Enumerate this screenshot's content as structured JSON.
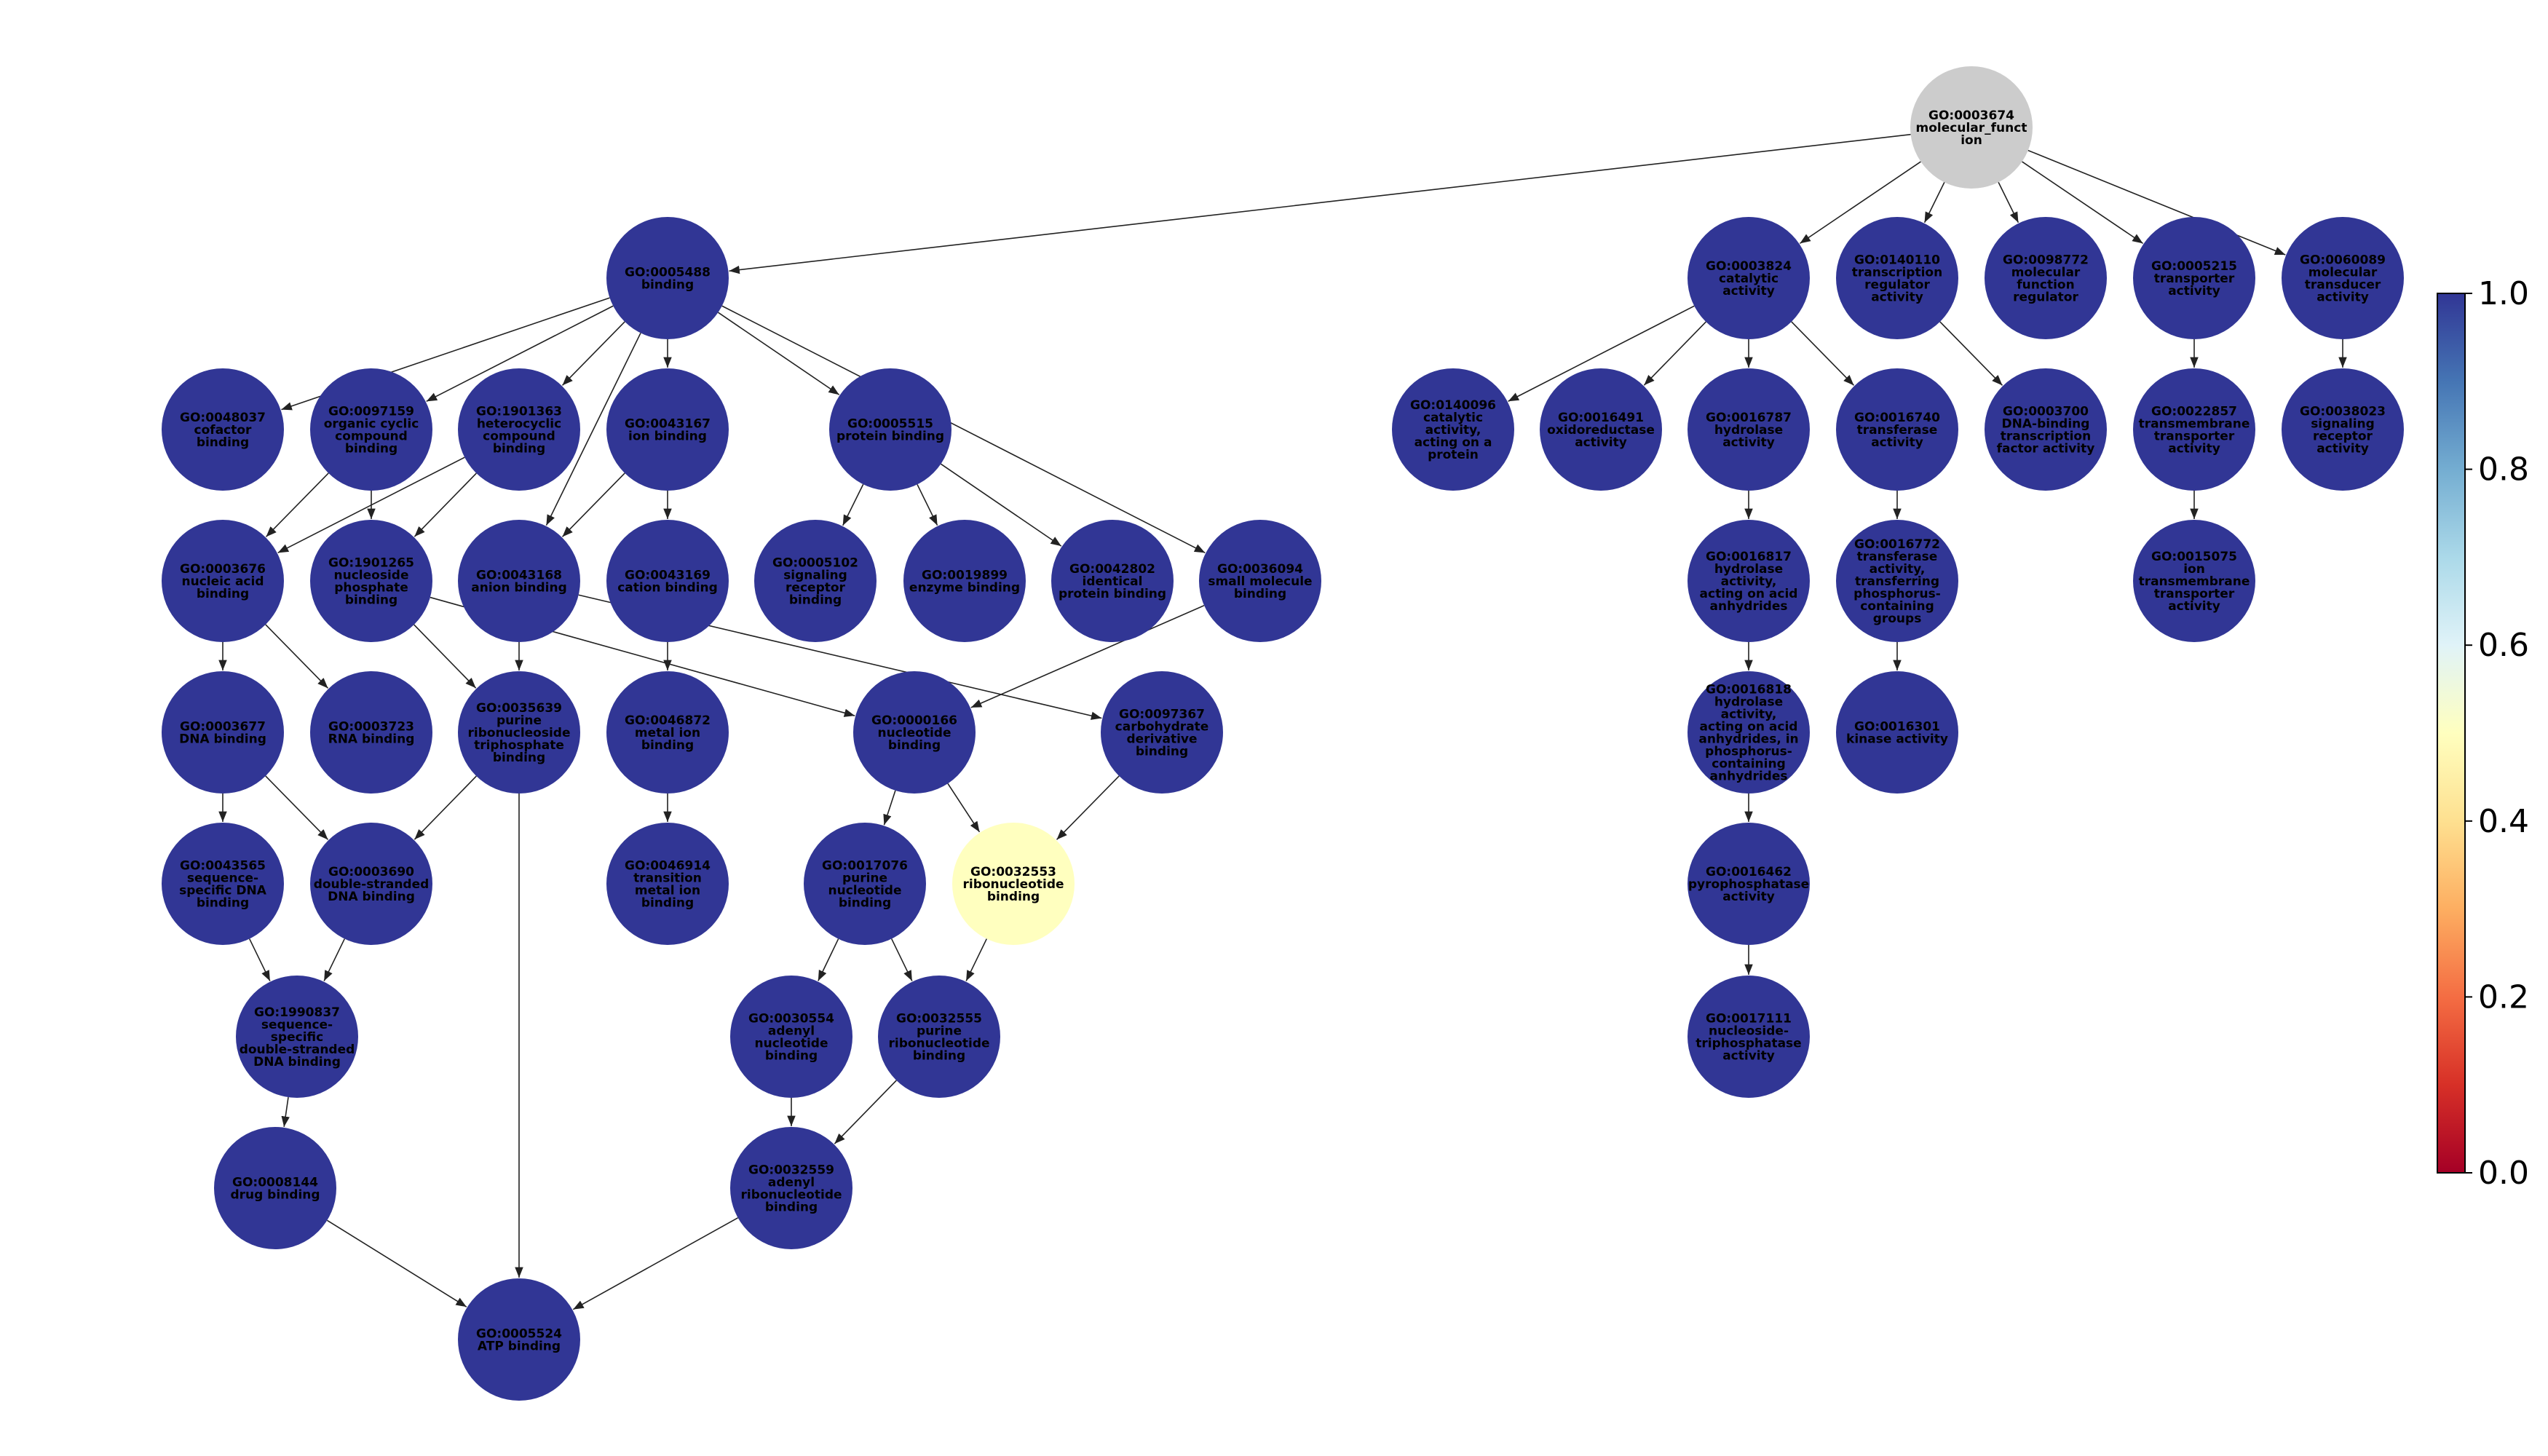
{
  "colors": {
    "node_default": "#313695",
    "node_root": "#cccccc",
    "node_highlight": "#ffffbf",
    "edge": "#222222"
  },
  "colorbar": {
    "ticks": [
      "1.0",
      "0.8",
      "0.6",
      "0.4",
      "0.2",
      "0.0"
    ],
    "gradient": [
      "#313695",
      "#4575b4",
      "#74add1",
      "#abd9e9",
      "#e0f3f8",
      "#ffffbf",
      "#fee090",
      "#fdae61",
      "#f46d43",
      "#d73027",
      "#a50026"
    ]
  },
  "nodes": [
    {
      "id": "GO:0003674",
      "lines": [
        "GO:0003674",
        "molecular_funct",
        "ion"
      ],
      "value": null
    },
    {
      "id": "GO:0005488",
      "lines": [
        "GO:0005488",
        "binding"
      ],
      "value": 1.0
    },
    {
      "id": "GO:0003824",
      "lines": [
        "GO:0003824",
        "catalytic",
        "activity"
      ],
      "value": 1.0
    },
    {
      "id": "GO:0140110",
      "lines": [
        "GO:0140110",
        "transcription",
        "regulator",
        "activity"
      ],
      "value": 1.0
    },
    {
      "id": "GO:0098772",
      "lines": [
        "GO:0098772",
        "molecular",
        "function",
        "regulator"
      ],
      "value": 1.0
    },
    {
      "id": "GO:0005215",
      "lines": [
        "GO:0005215",
        "transporter",
        "activity"
      ],
      "value": 1.0
    },
    {
      "id": "GO:0060089",
      "lines": [
        "GO:0060089",
        "molecular",
        "transducer",
        "activity"
      ],
      "value": 1.0
    },
    {
      "id": "GO:0048037",
      "lines": [
        "GO:0048037",
        "cofactor",
        "binding"
      ],
      "value": 1.0
    },
    {
      "id": "GO:0097159",
      "lines": [
        "GO:0097159",
        "organic cyclic",
        "compound",
        "binding"
      ],
      "value": 1.0
    },
    {
      "id": "GO:1901363",
      "lines": [
        "GO:1901363",
        "heterocyclic",
        "compound",
        "binding"
      ],
      "value": 1.0
    },
    {
      "id": "GO:0043167",
      "lines": [
        "GO:0043167",
        "ion binding"
      ],
      "value": 1.0
    },
    {
      "id": "GO:0005515",
      "lines": [
        "GO:0005515",
        "protein binding"
      ],
      "value": 1.0
    },
    {
      "id": "GO:0140096",
      "lines": [
        "GO:0140096",
        "catalytic",
        "activity,",
        "acting on a",
        "protein"
      ],
      "value": 1.0
    },
    {
      "id": "GO:0016491",
      "lines": [
        "GO:0016491",
        "oxidoreductase",
        "activity"
      ],
      "value": 1.0
    },
    {
      "id": "GO:0016787",
      "lines": [
        "GO:0016787",
        "hydrolase",
        "activity"
      ],
      "value": 1.0
    },
    {
      "id": "GO:0016740",
      "lines": [
        "GO:0016740",
        "transferase",
        "activity"
      ],
      "value": 1.0
    },
    {
      "id": "GO:0003700",
      "lines": [
        "GO:0003700",
        "DNA-binding",
        "transcription",
        "factor activity"
      ],
      "value": 1.0
    },
    {
      "id": "GO:0022857",
      "lines": [
        "GO:0022857",
        "transmembrane",
        "transporter",
        "activity"
      ],
      "value": 1.0
    },
    {
      "id": "GO:0038023",
      "lines": [
        "GO:0038023",
        "signaling",
        "receptor",
        "activity"
      ],
      "value": 1.0
    },
    {
      "id": "GO:0003676",
      "lines": [
        "GO:0003676",
        "nucleic acid",
        "binding"
      ],
      "value": 1.0
    },
    {
      "id": "GO:1901265",
      "lines": [
        "GO:1901265",
        "nucleoside",
        "phosphate",
        "binding"
      ],
      "value": 1.0
    },
    {
      "id": "GO:0043168",
      "lines": [
        "GO:0043168",
        "anion binding"
      ],
      "value": 1.0
    },
    {
      "id": "GO:0043169",
      "lines": [
        "GO:0043169",
        "cation binding"
      ],
      "value": 1.0
    },
    {
      "id": "GO:0005102",
      "lines": [
        "GO:0005102",
        "signaling",
        "receptor",
        "binding"
      ],
      "value": 1.0
    },
    {
      "id": "GO:0019899",
      "lines": [
        "GO:0019899",
        "enzyme binding"
      ],
      "value": 1.0
    },
    {
      "id": "GO:0042802",
      "lines": [
        "GO:0042802",
        "identical",
        "protein binding"
      ],
      "value": 1.0
    },
    {
      "id": "GO:0036094",
      "lines": [
        "GO:0036094",
        "small molecule",
        "binding"
      ],
      "value": 1.0
    },
    {
      "id": "GO:0016817",
      "lines": [
        "GO:0016817",
        "hydrolase",
        "activity,",
        "acting on acid",
        "anhydrides"
      ],
      "value": 1.0
    },
    {
      "id": "GO:0016772",
      "lines": [
        "GO:0016772",
        "transferase",
        "activity,",
        "transferring",
        "phosphorus-",
        "containing",
        "groups"
      ],
      "value": 1.0
    },
    {
      "id": "GO:0015075",
      "lines": [
        "GO:0015075",
        "ion",
        "transmembrane",
        "transporter",
        "activity"
      ],
      "value": 1.0
    },
    {
      "id": "GO:0003677",
      "lines": [
        "GO:0003677",
        "DNA binding"
      ],
      "value": 1.0
    },
    {
      "id": "GO:0003723",
      "lines": [
        "GO:0003723",
        "RNA binding"
      ],
      "value": 1.0
    },
    {
      "id": "GO:0035639",
      "lines": [
        "GO:0035639",
        "purine",
        "ribonucleoside",
        "triphosphate",
        "binding"
      ],
      "value": 1.0
    },
    {
      "id": "GO:0046872",
      "lines": [
        "GO:0046872",
        "metal ion",
        "binding"
      ],
      "value": 1.0
    },
    {
      "id": "GO:0000166",
      "lines": [
        "GO:0000166",
        "nucleotide",
        "binding"
      ],
      "value": 1.0
    },
    {
      "id": "GO:0097367",
      "lines": [
        "GO:0097367",
        "carbohydrate",
        "derivative",
        "binding"
      ],
      "value": 1.0
    },
    {
      "id": "GO:0016818",
      "lines": [
        "GO:0016818",
        "hydrolase",
        "activity,",
        "acting on acid",
        "anhydrides, in",
        "phosphorus-",
        "containing",
        "anhydrides"
      ],
      "value": 1.0
    },
    {
      "id": "GO:0016301",
      "lines": [
        "GO:0016301",
        "kinase activity"
      ],
      "value": 1.0
    },
    {
      "id": "GO:0043565",
      "lines": [
        "GO:0043565",
        "sequence-",
        "specific DNA",
        "binding"
      ],
      "value": 1.0
    },
    {
      "id": "GO:0003690",
      "lines": [
        "GO:0003690",
        "double-stranded",
        "DNA binding"
      ],
      "value": 1.0
    },
    {
      "id": "GO:0046914",
      "lines": [
        "GO:0046914",
        "transition",
        "metal ion",
        "binding"
      ],
      "value": 1.0
    },
    {
      "id": "GO:0017076",
      "lines": [
        "GO:0017076",
        "purine",
        "nucleotide",
        "binding"
      ],
      "value": 1.0
    },
    {
      "id": "GO:0032553",
      "lines": [
        "GO:0032553",
        "ribonucleotide",
        "binding"
      ],
      "value": 0.5
    },
    {
      "id": "GO:0016462",
      "lines": [
        "GO:0016462",
        "pyrophosphatase",
        "activity"
      ],
      "value": 1.0
    },
    {
      "id": "GO:1990837",
      "lines": [
        "GO:1990837",
        "sequence-",
        "specific",
        "double-stranded",
        "DNA binding"
      ],
      "value": 1.0
    },
    {
      "id": "GO:0030554",
      "lines": [
        "GO:0030554",
        "adenyl",
        "nucleotide",
        "binding"
      ],
      "value": 1.0
    },
    {
      "id": "GO:0032555",
      "lines": [
        "GO:0032555",
        "purine",
        "ribonucleotide",
        "binding"
      ],
      "value": 1.0
    },
    {
      "id": "GO:0017111",
      "lines": [
        "GO:0017111",
        "nucleoside-",
        "triphosphatase",
        "activity"
      ],
      "value": 1.0
    },
    {
      "id": "GO:0008144",
      "lines": [
        "GO:0008144",
        "drug binding"
      ],
      "value": 1.0
    },
    {
      "id": "GO:0032559",
      "lines": [
        "GO:0032559",
        "adenyl",
        "ribonucleotide",
        "binding"
      ],
      "value": 1.0
    },
    {
      "id": "GO:0005524",
      "lines": [
        "GO:0005524",
        "ATP binding"
      ],
      "value": 1.0
    }
  ],
  "edges": [
    [
      "GO:0003674",
      "GO:0005488"
    ],
    [
      "GO:0003674",
      "GO:0003824"
    ],
    [
      "GO:0003674",
      "GO:0140110"
    ],
    [
      "GO:0003674",
      "GO:0098772"
    ],
    [
      "GO:0003674",
      "GO:0005215"
    ],
    [
      "GO:0003674",
      "GO:0060089"
    ],
    [
      "GO:0005488",
      "GO:0048037"
    ],
    [
      "GO:0005488",
      "GO:0097159"
    ],
    [
      "GO:0005488",
      "GO:1901363"
    ],
    [
      "GO:0005488",
      "GO:0043167"
    ],
    [
      "GO:0005488",
      "GO:0005515"
    ],
    [
      "GO:0005488",
      "GO:0043168"
    ],
    [
      "GO:0005488",
      "GO:0036094"
    ],
    [
      "GO:0003824",
      "GO:0140096"
    ],
    [
      "GO:0003824",
      "GO:0016491"
    ],
    [
      "GO:0003824",
      "GO:0016787"
    ],
    [
      "GO:0003824",
      "GO:0016740"
    ],
    [
      "GO:0140110",
      "GO:0003700"
    ],
    [
      "GO:0005215",
      "GO:0022857"
    ],
    [
      "GO:0060089",
      "GO:0038023"
    ],
    [
      "GO:0097159",
      "GO:0003676"
    ],
    [
      "GO:0097159",
      "GO:1901265"
    ],
    [
      "GO:1901363",
      "GO:0003676"
    ],
    [
      "GO:1901363",
      "GO:1901265"
    ],
    [
      "GO:0043167",
      "GO:0043168"
    ],
    [
      "GO:0043167",
      "GO:0043169"
    ],
    [
      "GO:0005515",
      "GO:0005102"
    ],
    [
      "GO:0005515",
      "GO:0019899"
    ],
    [
      "GO:0005515",
      "GO:0042802"
    ],
    [
      "GO:0016787",
      "GO:0016817"
    ],
    [
      "GO:0016740",
      "GO:0016772"
    ],
    [
      "GO:0022857",
      "GO:0015075"
    ],
    [
      "GO:0003676",
      "GO:0003677"
    ],
    [
      "GO:0003676",
      "GO:0003723"
    ],
    [
      "GO:1901265",
      "GO:0035639"
    ],
    [
      "GO:1901265",
      "GO:0000166"
    ],
    [
      "GO:0043168",
      "GO:0035639"
    ],
    [
      "GO:0043168",
      "GO:0097367"
    ],
    [
      "GO:0043169",
      "GO:0046872"
    ],
    [
      "GO:0036094",
      "GO:0000166"
    ],
    [
      "GO:0016817",
      "GO:0016818"
    ],
    [
      "GO:0016772",
      "GO:0016301"
    ],
    [
      "GO:0003677",
      "GO:0043565"
    ],
    [
      "GO:0003677",
      "GO:0003690"
    ],
    [
      "GO:0046872",
      "GO:0046914"
    ],
    [
      "GO:0000166",
      "GO:0017076"
    ],
    [
      "GO:0000166",
      "GO:0032553"
    ],
    [
      "GO:0097367",
      "GO:0032553"
    ],
    [
      "GO:0016818",
      "GO:0016462"
    ],
    [
      "GO:0043565",
      "GO:1990837"
    ],
    [
      "GO:0003690",
      "GO:1990837"
    ],
    [
      "GO:0017076",
      "GO:0030554"
    ],
    [
      "GO:0017076",
      "GO:0032555"
    ],
    [
      "GO:0032553",
      "GO:0032555"
    ],
    [
      "GO:0016462",
      "GO:0017111"
    ],
    [
      "GO:1990837",
      "GO:0008144"
    ],
    [
      "GO:0030554",
      "GO:0032559"
    ],
    [
      "GO:0032555",
      "GO:0032559"
    ],
    [
      "GO:0035639",
      "GO:0005524"
    ],
    [
      "GO:0008144",
      "GO:0005524"
    ],
    [
      "GO:0032559",
      "GO:0005524"
    ],
    [
      "GO:0035639",
      "GO:0003690"
    ]
  ]
}
